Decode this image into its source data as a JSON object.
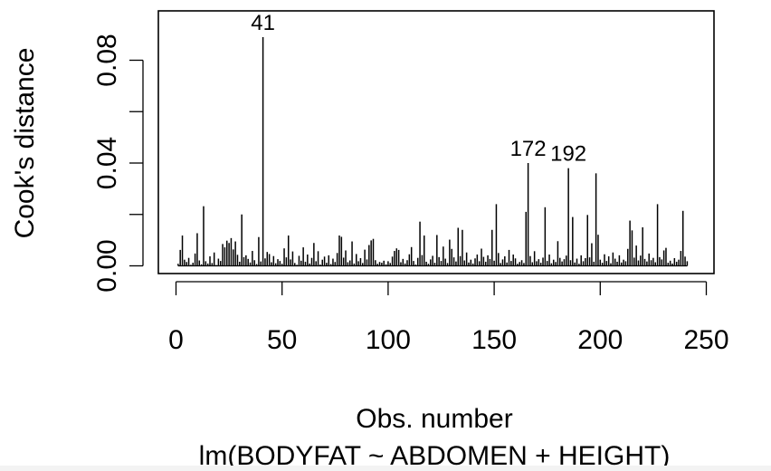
{
  "chart_data": {
    "type": "bar",
    "xlabel": "Obs. number",
    "ylabel": "Cook's distance",
    "subtitle": "lm(BODYFAT ~ ABDOMEN + HEIGHT)",
    "xlim": [
      0,
      252
    ],
    "ylim": [
      0,
      0.095
    ],
    "x_ticks": [
      0,
      50,
      100,
      150,
      200,
      250
    ],
    "x_tick_labels": [
      "0",
      "50",
      "100",
      "150",
      "200",
      "250"
    ],
    "y_ticks": [
      0.0,
      0.02,
      0.04,
      0.06,
      0.08
    ],
    "y_tick_labels": [
      "0.00",
      "0.04",
      "0.08"
    ],
    "y_labeled_ticks": [
      0.0,
      0.04,
      0.08
    ],
    "annotations": [
      {
        "label": "41",
        "x": 41,
        "y": 0.089
      },
      {
        "label": "172",
        "x": 166,
        "y": 0.04
      },
      {
        "label": "192",
        "x": 185,
        "y": 0.038
      }
    ],
    "values": [
      0.0008,
      0.0062,
      0.0118,
      0.0024,
      0.0015,
      0.0031,
      0.0004,
      0.0012,
      0.0048,
      0.0127,
      0.0021,
      0.0006,
      0.0232,
      0.0018,
      0.0009,
      0.0037,
      0.0011,
      0.0052,
      0.0003,
      0.0028,
      0.0019,
      0.0085,
      0.0072,
      0.0098,
      0.0089,
      0.0108,
      0.0064,
      0.0095,
      0.0043,
      0.0016,
      0.02,
      0.0034,
      0.0041,
      0.0027,
      0.0013,
      0.0058,
      0.0022,
      0.0007,
      0.0112,
      0.0017,
      0.089,
      0.0029,
      0.0054,
      0.0046,
      0.0014,
      0.0038,
      0.001,
      0.0026,
      0.0019,
      0.0008,
      0.0068,
      0.0033,
      0.0118,
      0.0025,
      0.0056,
      0.0011,
      0.0004,
      0.0039,
      0.002,
      0.0072,
      0.0016,
      0.0044,
      0.0009,
      0.0031,
      0.0089,
      0.0018,
      0.0057,
      0.0005,
      0.0024,
      0.0036,
      0.0012,
      0.0041,
      0.0007,
      0.0028,
      0.0015,
      0.005,
      0.0118,
      0.0113,
      0.0032,
      0.006,
      0.0014,
      0.0021,
      0.0095,
      0.0009,
      0.0046,
      0.0018,
      0.003,
      0.0011,
      0.0063,
      0.0025,
      0.0081,
      0.0099,
      0.0105,
      0.0022,
      0.0008,
      0.0015,
      0.0012,
      0.002,
      0.0006,
      0.0018,
      0.0011,
      0.0036,
      0.0058,
      0.0068,
      0.0062,
      0.0014,
      0.0027,
      0.0009,
      0.0022,
      0.0045,
      0.0073,
      0.0019,
      0.0005,
      0.0031,
      0.0172,
      0.0042,
      0.0118,
      0.0016,
      0.0008,
      0.0025,
      0.0039,
      0.0012,
      0.012,
      0.0034,
      0.0019,
      0.0075,
      0.0028,
      0.0011,
      0.0102,
      0.0066,
      0.0033,
      0.0017,
      0.0148,
      0.0038,
      0.014,
      0.0021,
      0.0052,
      0.0013,
      0.0024,
      0.0009,
      0.0029,
      0.0044,
      0.0018,
      0.0067,
      0.0035,
      0.0016,
      0.0041,
      0.0027,
      0.014,
      0.002,
      0.024,
      0.005,
      0.0011,
      0.0025,
      0.0037,
      0.0013,
      0.0062,
      0.0019,
      0.0044,
      0.0029,
      0.0008,
      0.0015,
      0.0022,
      0.0011,
      0.021,
      0.04,
      0.0038,
      0.0014,
      0.0057,
      0.0018,
      0.0026,
      0.0012,
      0.0032,
      0.0228,
      0.0019,
      0.0044,
      0.001,
      0.0024,
      0.0015,
      0.0096,
      0.0031,
      0.0017,
      0.0026,
      0.004,
      0.038,
      0.0022,
      0.019,
      0.0013,
      0.0028,
      0.0008,
      0.0041,
      0.0018,
      0.003,
      0.0198,
      0.0033,
      0.0088,
      0.0016,
      0.036,
      0.0121,
      0.0024,
      0.0012,
      0.0045,
      0.0019,
      0.0037,
      0.001,
      0.0052,
      0.0028,
      0.0016,
      0.0041,
      0.0013,
      0.0024,
      0.0018,
      0.0066,
      0.0176,
      0.0138,
      0.0032,
      0.0079,
      0.0021,
      0.004,
      0.015,
      0.0027,
      0.0017,
      0.0048,
      0.0022,
      0.0031,
      0.0014,
      0.024,
      0.0034,
      0.0025,
      0.006,
      0.007,
      0.0012,
      0.002,
      0.0009,
      0.003,
      0.0016,
      0.0024,
      0.0058,
      0.0214,
      0.0036,
      0.0018
    ]
  }
}
